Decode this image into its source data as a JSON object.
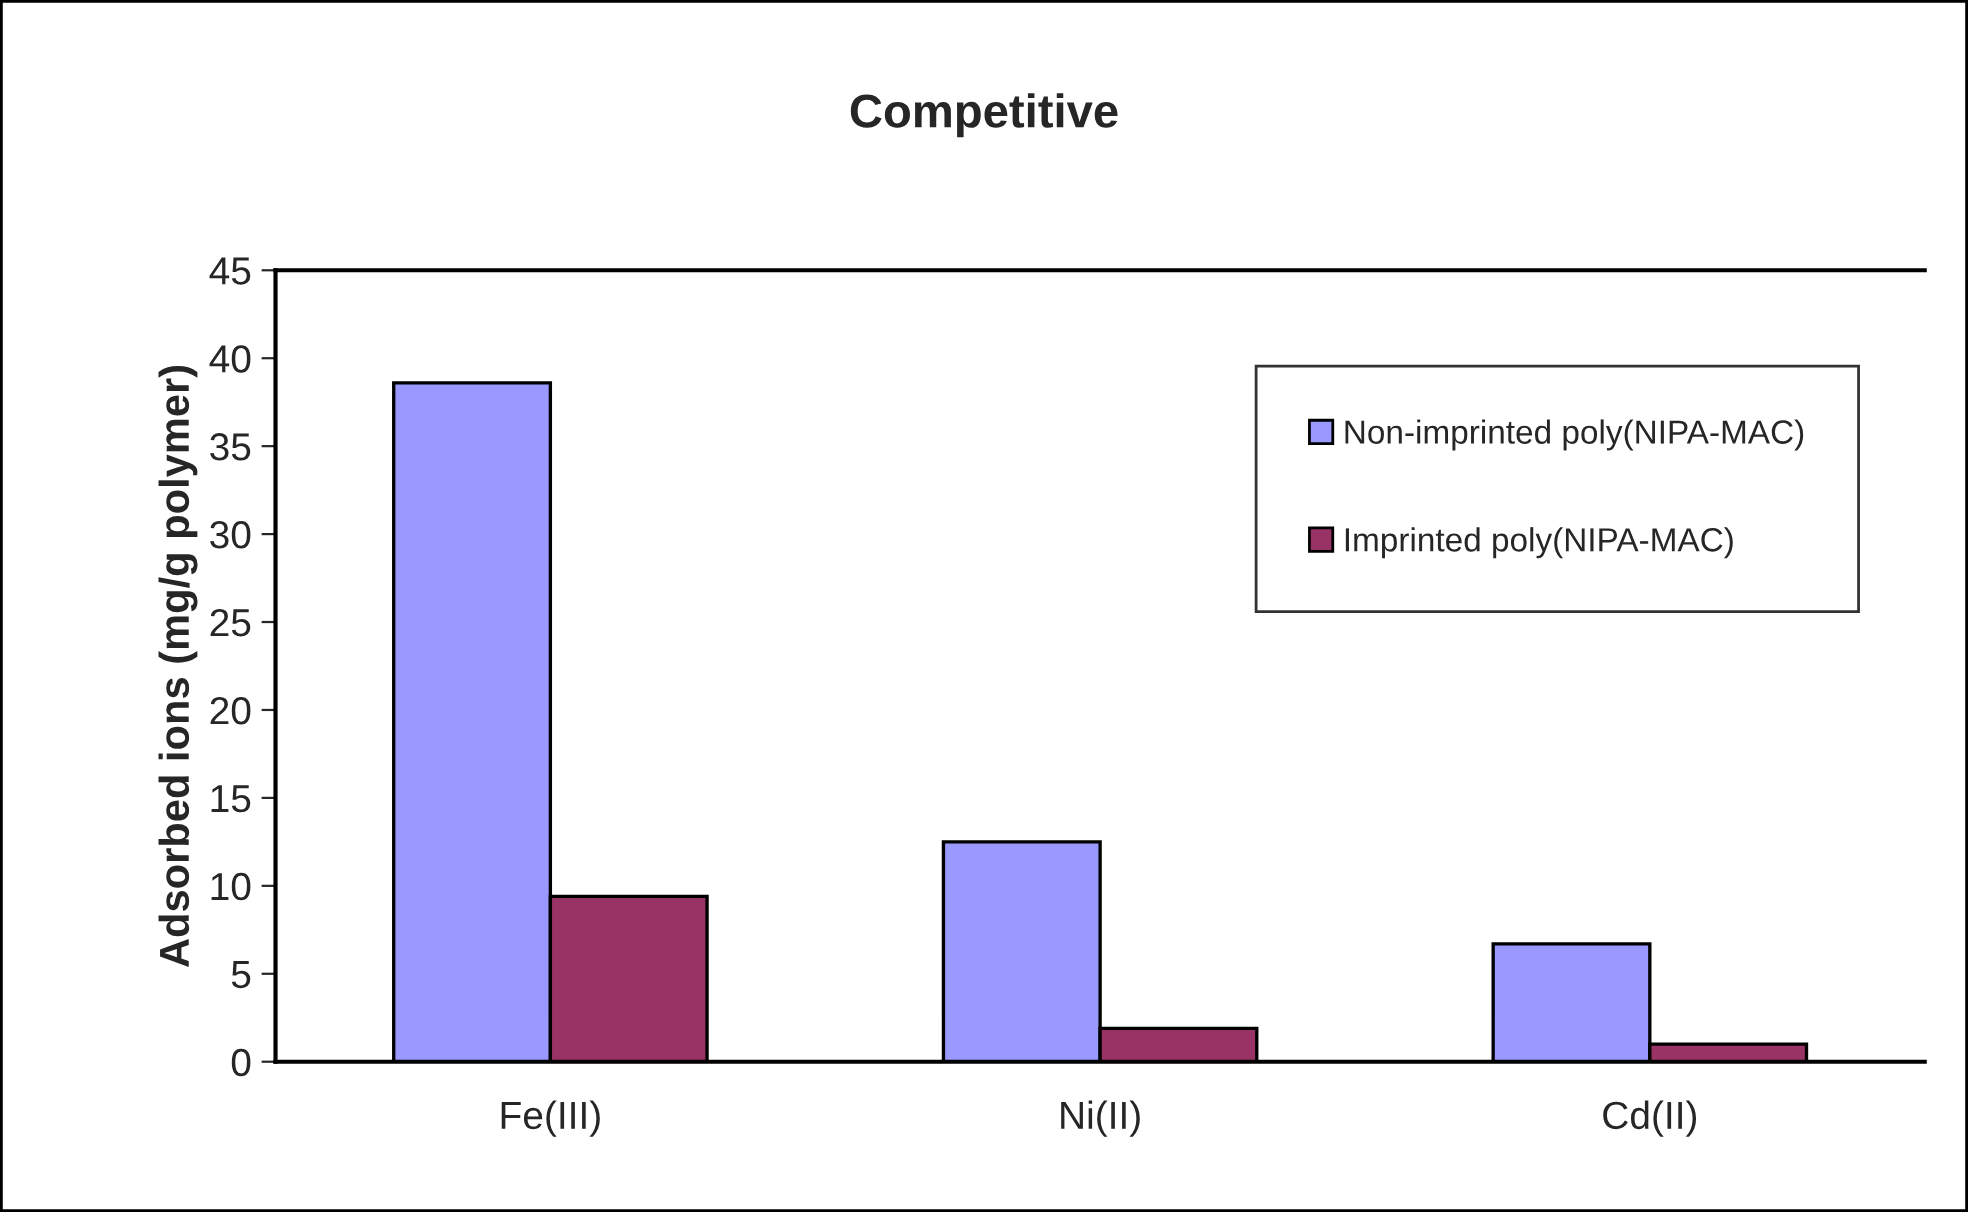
{
  "chart_data": {
    "type": "bar",
    "title": "Competitive",
    "ylabel": "Adsorbed ions (mg/g polymer)",
    "categories": [
      "Fe(III)",
      "Ni(II)",
      "Cd(II)"
    ],
    "series": [
      {
        "name": "Non-imprinted poly(NIPA-MAC)",
        "color": "#9999ff",
        "values": [
          38.6,
          12.5,
          6.7
        ]
      },
      {
        "name": "Imprinted poly(NIPA-MAC)",
        "color": "#993366",
        "values": [
          9.4,
          1.9,
          1.0
        ]
      }
    ],
    "ylim": [
      0,
      45
    ],
    "yticks": [
      0,
      5,
      10,
      15,
      20,
      25,
      30,
      35,
      40,
      45
    ],
    "grid": false,
    "legend": "top right"
  }
}
